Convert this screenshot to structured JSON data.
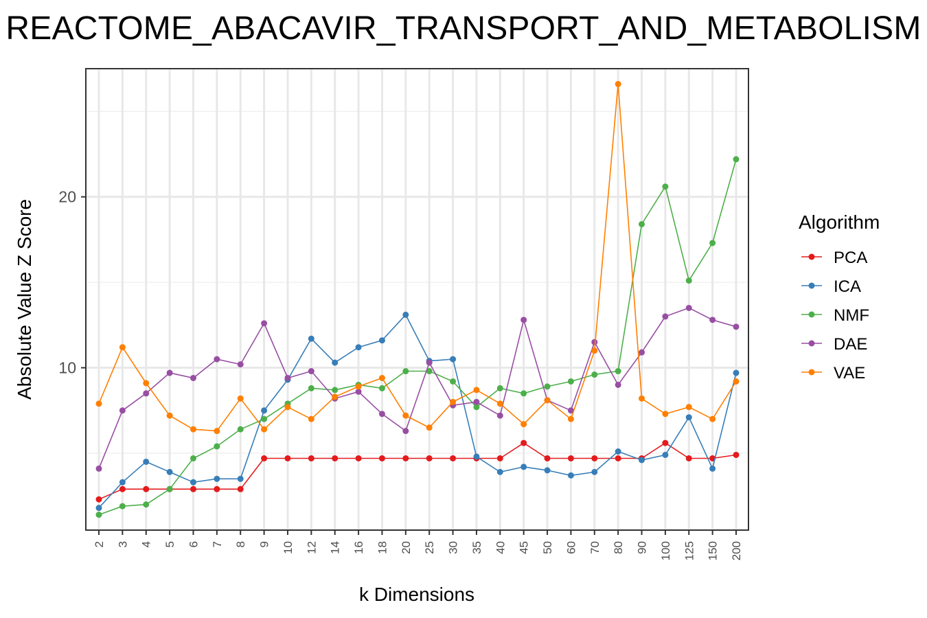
{
  "title": "REACTOME_ABACAVIR_TRANSPORT_AND_METABOLISM",
  "chart_data": {
    "type": "line",
    "title": "REACTOME_ABACAVIR_TRANSPORT_AND_METABOLISM",
    "xlabel": "k Dimensions",
    "ylabel": "Absolute Value Z Score",
    "categories": [
      "2",
      "3",
      "4",
      "5",
      "6",
      "7",
      "8",
      "9",
      "10",
      "12",
      "14",
      "16",
      "18",
      "20",
      "25",
      "30",
      "35",
      "40",
      "45",
      "50",
      "60",
      "70",
      "80",
      "90",
      "100",
      "125",
      "150",
      "200"
    ],
    "ylim": [
      0.5,
      27.5
    ],
    "yticks": [
      10,
      20
    ],
    "grid": true,
    "legend": {
      "title": "Algorithm",
      "placement": "right"
    },
    "series": [
      {
        "name": "PCA",
        "color": "#e41a1c",
        "values": [
          2.3,
          2.9,
          2.9,
          2.9,
          2.9,
          2.9,
          2.9,
          4.7,
          4.7,
          4.7,
          4.7,
          4.7,
          4.7,
          4.7,
          4.7,
          4.7,
          4.7,
          4.7,
          5.6,
          4.7,
          4.7,
          4.7,
          4.7,
          4.7,
          5.6,
          4.7,
          4.7,
          4.9
        ]
      },
      {
        "name": "ICA",
        "color": "#377eb8",
        "values": [
          1.8,
          3.3,
          4.5,
          3.9,
          3.3,
          3.5,
          3.5,
          7.5,
          9.3,
          11.7,
          10.3,
          11.2,
          11.6,
          13.1,
          10.4,
          10.5,
          4.8,
          3.9,
          4.2,
          4.0,
          3.7,
          3.9,
          5.1,
          4.6,
          4.9,
          7.1,
          4.1,
          9.7
        ]
      },
      {
        "name": "NMF",
        "color": "#4daf4a",
        "values": [
          1.4,
          1.9,
          2.0,
          2.9,
          4.7,
          5.4,
          6.4,
          7.0,
          7.9,
          8.8,
          8.7,
          9.0,
          8.8,
          9.8,
          9.8,
          9.2,
          7.7,
          8.8,
          8.5,
          8.9,
          9.2,
          9.6,
          9.8,
          18.4,
          20.6,
          15.1,
          17.3,
          22.2
        ]
      },
      {
        "name": "DAE",
        "color": "#984ea3",
        "values": [
          4.1,
          7.5,
          8.5,
          9.7,
          9.4,
          10.5,
          10.2,
          12.6,
          9.4,
          9.8,
          8.2,
          8.6,
          7.3,
          6.3,
          10.3,
          7.8,
          8.0,
          7.2,
          12.8,
          8.1,
          7.5,
          11.5,
          9.0,
          10.9,
          13.0,
          13.5,
          12.8,
          12.4
        ]
      },
      {
        "name": "VAE",
        "color": "#ff7f00",
        "values": [
          7.9,
          11.2,
          9.1,
          7.2,
          6.4,
          6.3,
          8.2,
          6.4,
          7.7,
          7.0,
          8.3,
          8.9,
          9.4,
          7.2,
          6.5,
          8.0,
          8.7,
          7.9,
          6.7,
          8.1,
          7.0,
          11.0,
          26.6,
          8.2,
          7.3,
          7.7,
          7.0,
          9.2
        ]
      }
    ]
  }
}
